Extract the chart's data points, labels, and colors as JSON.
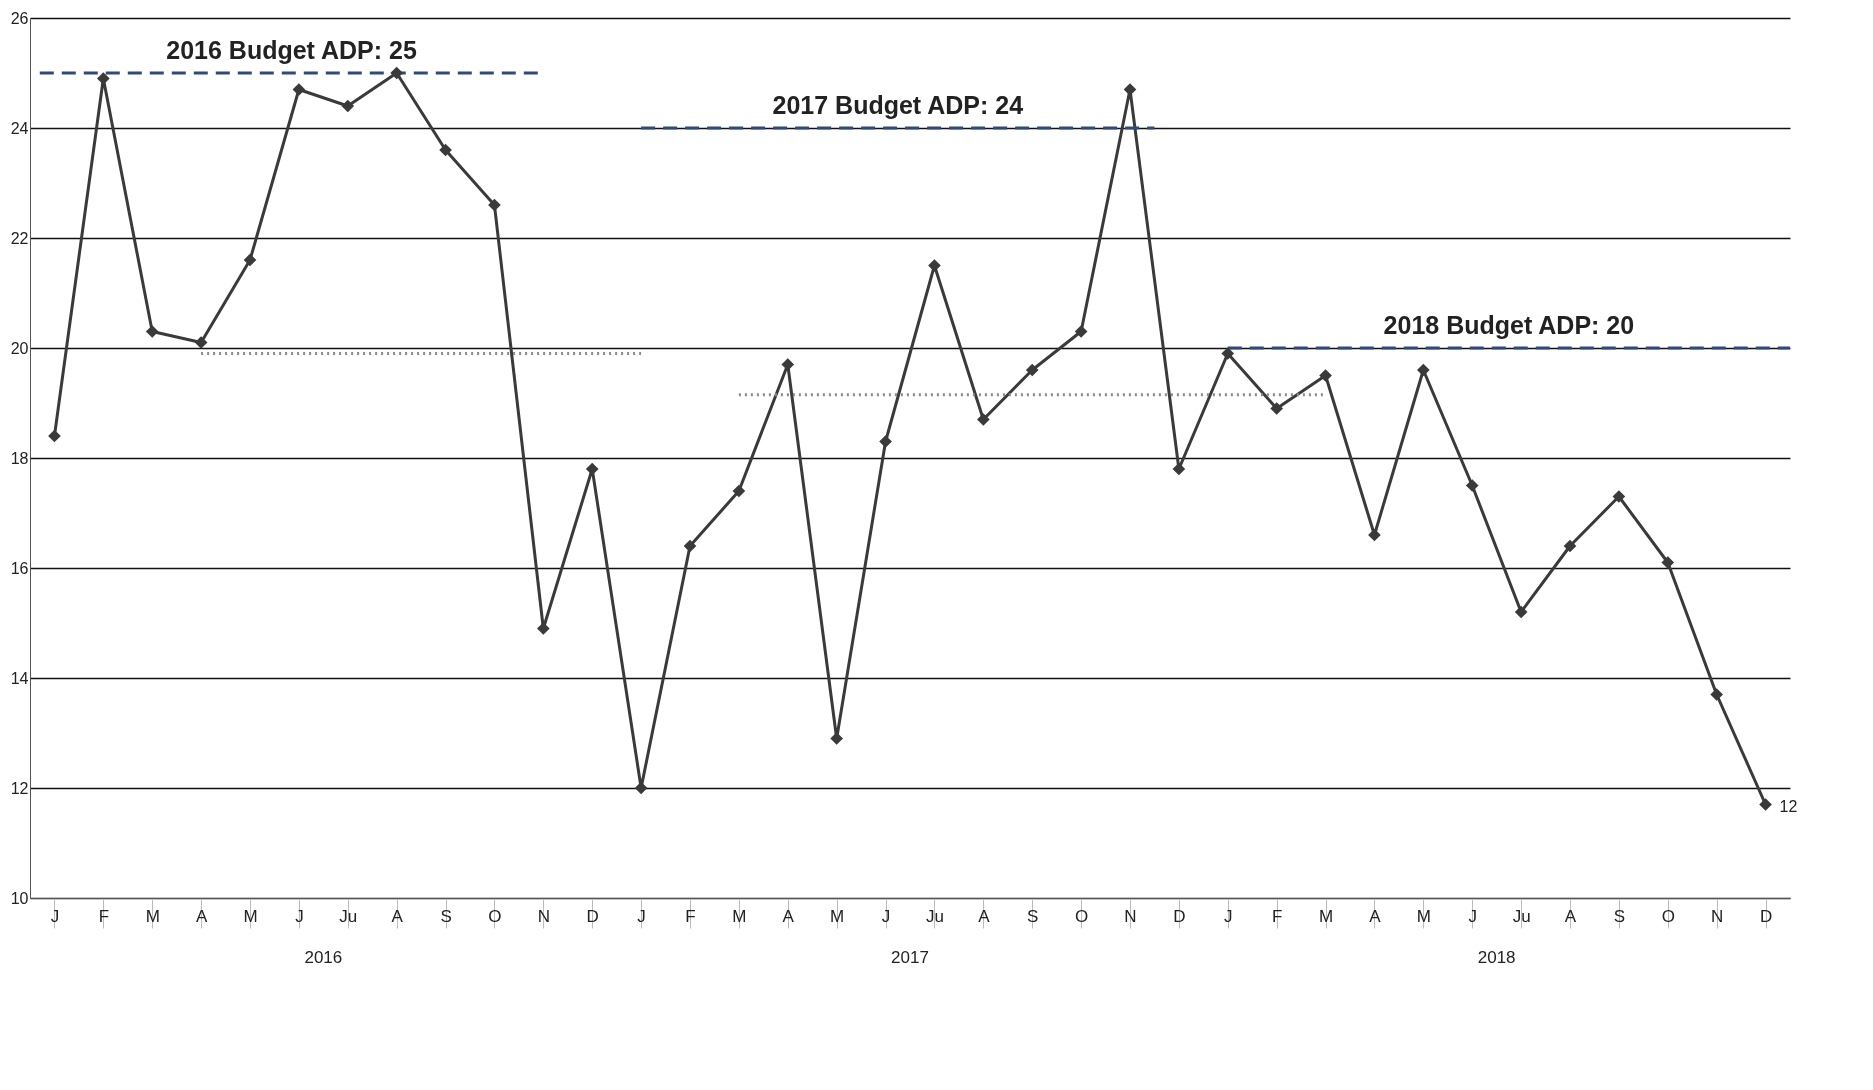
{
  "chart_data": {
    "type": "line",
    "categories": [
      "J",
      "F",
      "M",
      "A",
      "M",
      "J",
      "Ju",
      "A",
      "S",
      "O",
      "N",
      "D",
      "J",
      "F",
      "M",
      "A",
      "M",
      "J",
      "Ju",
      "A",
      "S",
      "O",
      "N",
      "D",
      "J",
      "F",
      "M",
      "A",
      "M",
      "J",
      "Ju",
      "A",
      "S",
      "O",
      "N",
      "D"
    ],
    "series": [
      {
        "color": "#3a3a3a",
        "values": [
          18.4,
          24.9,
          20.3,
          20.1,
          21.6,
          24.7,
          24.4,
          25.0,
          23.6,
          22.6,
          14.9,
          17.8,
          12.0,
          16.4,
          17.4,
          19.7,
          12.9,
          18.3,
          21.5,
          18.7,
          19.6,
          20.3,
          24.7,
          17.8,
          19.9,
          18.9,
          19.5,
          16.6,
          19.6,
          17.5,
          15.2,
          16.4,
          17.3,
          16.1,
          13.7,
          11.7
        ],
        "value_labels": [
          null,
          null,
          null,
          null,
          null,
          null,
          null,
          null,
          null,
          null,
          null,
          null,
          null,
          null,
          null,
          null,
          null,
          null,
          null,
          null,
          null,
          null,
          null,
          null,
          null,
          null,
          null,
          null,
          null,
          null,
          null,
          null,
          null,
          null,
          null,
          "12"
        ]
      }
    ],
    "ylim": [
      10,
      26
    ],
    "yticks": [
      10,
      12,
      14,
      16,
      18,
      20,
      22,
      24,
      26
    ],
    "grid": "y",
    "marker": "diamond",
    "line_style": "solid",
    "ref_lines": [
      {
        "axis": "y",
        "value": 25,
        "label": "2016 Budget ADP:  25",
        "color": "#2f4a7a",
        "line_style": "dashed"
      },
      {
        "axis": "y",
        "value": 24,
        "label": "2017 Budget ADP:  24",
        "color": "#2f4a7a",
        "line_style": "dashed"
      },
      {
        "axis": "y",
        "value": 20,
        "label": "2018 Budget ADP:  20",
        "color": "#2f4a7a",
        "line_style": "dashed"
      },
      {
        "axis": "y",
        "value": 19.9,
        "color": "#8a8a8a",
        "line_style": "dotted"
      },
      {
        "axis": "y",
        "value": 19.15,
        "color": "#8a8a8a",
        "line_style": "dotted"
      }
    ],
    "annotations": [
      "2016",
      "2017",
      "2018"
    ]
  }
}
